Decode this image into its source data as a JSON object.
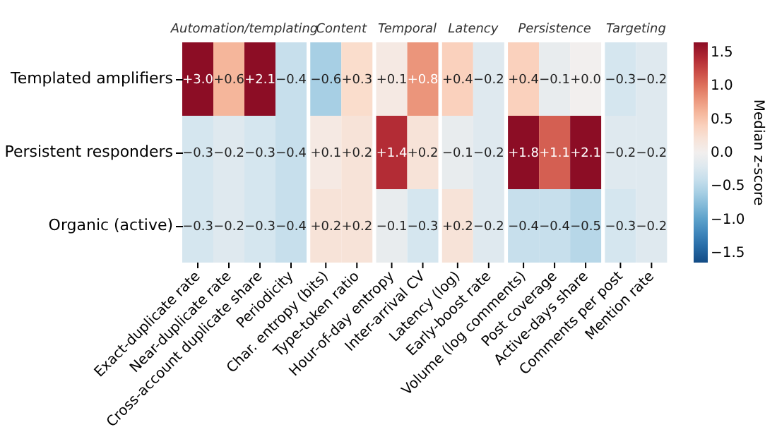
{
  "chart_data": {
    "type": "heatmap",
    "categories": [
      "Exact-duplicate rate",
      "Near-duplicate rate",
      "Cross-account duplicate share",
      "Periodicity",
      null,
      "Char. entropy (bits)",
      "Type-token ratio",
      null,
      "Hour-of-day entropy",
      "Inter-arrival CV",
      null,
      "Latency (log)",
      "Early-boost rate",
      null,
      "Volume (log comments)",
      "Post coverage",
      "Active-days share",
      null,
      "Comments per post",
      "Mention rate"
    ],
    "y_categories": [
      "Templated amplifiers",
      "Persistent responders",
      "Organic (active)"
    ],
    "cells": [
      [
        3.0,
        0.6,
        2.1,
        -0.4,
        null,
        -0.6,
        0.3,
        null,
        0.1,
        0.8,
        null,
        0.4,
        -0.2,
        null,
        0.4,
        -0.1,
        0.0,
        null,
        -0.3,
        -0.2
      ],
      [
        -0.3,
        -0.2,
        -0.3,
        -0.4,
        null,
        0.1,
        0.2,
        null,
        1.4,
        0.2,
        null,
        -0.1,
        -0.2,
        null,
        1.8,
        1.1,
        2.1,
        null,
        -0.2,
        -0.2
      ],
      [
        -0.3,
        -0.2,
        -0.3,
        -0.4,
        null,
        0.2,
        0.2,
        null,
        -0.1,
        -0.3,
        null,
        0.2,
        -0.2,
        null,
        -0.4,
        -0.4,
        -0.5,
        null,
        -0.3,
        -0.2
      ]
    ],
    "cell_labels": [
      [
        "+3.0",
        "+0.6",
        "+2.1",
        "−0.4",
        null,
        "−0.6",
        "+0.3",
        null,
        "+0.1",
        "+0.8",
        null,
        "+0.4",
        "−0.2",
        null,
        "+0.4",
        "−0.1",
        "+0.0",
        null,
        "−0.3",
        "−0.2"
      ],
      [
        "−0.3",
        "−0.2",
        "−0.3",
        "−0.4",
        null,
        "+0.1",
        "+0.2",
        null,
        "+1.4",
        "+0.2",
        null,
        "−0.1",
        "−0.2",
        null,
        "+1.8",
        "+1.1",
        "+2.1",
        null,
        "−0.2",
        "−0.2"
      ],
      [
        "−0.3",
        "−0.2",
        "−0.3",
        "−0.4",
        null,
        "+0.2",
        "+0.2",
        null,
        "−0.1",
        "−0.3",
        null,
        "+0.2",
        "−0.2",
        null,
        "−0.4",
        "−0.4",
        "−0.5",
        null,
        "−0.3",
        "−0.2"
      ]
    ],
    "annotations": [
      "Automation/templating",
      "Content",
      "Temporal",
      "Latency",
      "Persistence",
      "Targeting"
    ],
    "clim": [
      -1.65,
      1.65
    ],
    "clabel": "Median z-score",
    "cticks": [
      {
        "value": 1.5,
        "label": "1.5"
      },
      {
        "value": 1.0,
        "label": "1.0"
      },
      {
        "value": 0.5,
        "label": "0.5"
      },
      {
        "value": 0.0,
        "label": "0.0"
      },
      {
        "value": -0.5,
        "label": "−0.5"
      },
      {
        "value": -1.0,
        "label": "−1.0"
      },
      {
        "value": -1.5,
        "label": "−1.5"
      }
    ]
  }
}
